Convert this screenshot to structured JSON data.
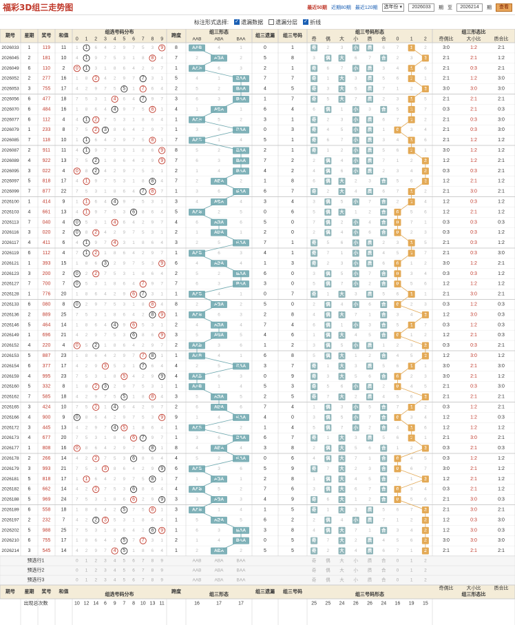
{
  "header": {
    "logo": "福彩3D组三走势图",
    "links": [
      "最近50期",
      "近期80期",
      "最近120期"
    ],
    "active_link": 0,
    "year_select": "选年份",
    "from_value": "2026033",
    "from_label": "期",
    "to_label": "至",
    "to_value": "2026214",
    "to_label2": "期",
    "query_button": "查看"
  },
  "options": {
    "label": "标注形式选择:",
    "checkboxes": [
      {
        "label": "遗漏数据",
        "checked": true
      },
      {
        "label": "遗漏分层",
        "checked": false
      },
      {
        "label": "折线",
        "checked": true
      }
    ]
  },
  "table": {
    "headers": {
      "issue": "期号",
      "week": "星期",
      "prize": "奖号",
      "sum": "和值",
      "dist_group": "组选号码分布",
      "span": "跨度",
      "form_group": "组三形态",
      "miss": "组三遗漏",
      "code": "组三号码",
      "codeform_group": "组三号码形态",
      "ratio_group": "组三形态比"
    },
    "digits": [
      "0",
      "1",
      "2",
      "3",
      "4",
      "5",
      "6",
      "7",
      "8",
      "9"
    ],
    "forms": [
      "AAB",
      "ABA",
      "BAA"
    ],
    "codeforms": [
      "奇",
      "偶",
      "大",
      "小",
      "质",
      "合",
      "0",
      "1",
      "2"
    ],
    "ratios": [
      "奇偶比",
      "大小比",
      "质合比"
    ],
    "rows": [
      [
        "2026033",
        "1",
        "119",
        "11",
        "11",
        "8",
        "1",
        "2",
        "3:0",
        "1:2",
        "2:1"
      ],
      [
        "2026045",
        "2",
        "181",
        "10",
        "10",
        "7",
        "8",
        "1",
        "2:1",
        "2:1",
        "1:2"
      ],
      [
        "2026049",
        "6",
        "110",
        "2",
        "2",
        "1",
        "1",
        "0",
        "2:1",
        "0:3",
        "2:1"
      ],
      [
        "2026052",
        "2",
        "277",
        "16",
        "16",
        "5",
        "7",
        "2",
        "2:1",
        "1:2",
        "3:0"
      ],
      [
        "2026053",
        "3",
        "755",
        "17",
        "17",
        "2",
        "5",
        "2",
        "3:0",
        "3:0",
        "3:0"
      ],
      [
        "2026056",
        "6",
        "477",
        "18",
        "18",
        "3",
        "7",
        "4",
        "2:1",
        "2:1",
        "2:1"
      ],
      [
        "2026070",
        "6",
        "484",
        "16",
        "16",
        "4",
        "4",
        "8",
        "0:3",
        "2:1",
        "0:3"
      ],
      [
        "2026077",
        "6",
        "112",
        "4",
        "4",
        "1",
        "1",
        "2",
        "2:1",
        "0:3",
        "3:0"
      ],
      [
        "2026079",
        "1",
        "233",
        "8",
        "8",
        "1",
        "3",
        "3",
        "2:1",
        "0:3",
        "3:0"
      ],
      [
        "2026085",
        "7",
        "118",
        "10",
        "10",
        "7",
        "1",
        "8",
        "2:1",
        "1:2",
        "1:2"
      ],
      [
        "2026087",
        "2",
        "911",
        "11",
        "11",
        "8",
        "1",
        "9",
        "3:0",
        "1:2",
        "1:2"
      ],
      [
        "2026089",
        "4",
        "922",
        "13",
        "13",
        "7",
        "2",
        "9",
        "1:2",
        "1:2",
        "2:1"
      ],
      [
        "2026095",
        "3",
        "022",
        "4",
        "4",
        "2",
        "2",
        "0",
        "0:3",
        "0:3",
        "2:1"
      ],
      [
        "2026097",
        "5",
        "818",
        "17",
        "17",
        "7",
        "8",
        "1",
        "1:2",
        "2:1",
        "1:2"
      ],
      [
        "2026099",
        "7",
        "877",
        "22",
        "22",
        "1",
        "7",
        "8",
        "2:1",
        "3:0",
        "2:1"
      ],
      [
        "2026100",
        "1",
        "414",
        "9",
        "9",
        "3",
        "4",
        "1",
        "1:2",
        "0:3",
        "1:2"
      ],
      [
        "2026103",
        "4",
        "661",
        "13",
        "13",
        "5",
        "6",
        "1",
        "1:2",
        "2:1",
        "1:2"
      ],
      [
        "2026113",
        "7",
        "040",
        "4",
        "4",
        "4",
        "0",
        "4",
        "0:3",
        "0:3",
        "0:3"
      ],
      [
        "2026116",
        "3",
        "020",
        "2",
        "2",
        "2",
        "0",
        "2",
        "0:3",
        "0:3",
        "1:2"
      ],
      [
        "2026117",
        "4",
        "411",
        "6",
        "6",
        "3",
        "1",
        "4",
        "2:1",
        "0:3",
        "1:2"
      ],
      [
        "2026119",
        "6",
        "112",
        "4",
        "4",
        "1",
        "1",
        "2",
        "2:1",
        "0:3",
        "3:0"
      ],
      [
        "2026121",
        "1",
        "393",
        "15",
        "15",
        "6",
        "3",
        "9",
        "3:0",
        "1:2",
        "2:1"
      ],
      [
        "2026123",
        "3",
        "200",
        "2",
        "2",
        "2",
        "0",
        "2",
        "0:3",
        "0:3",
        "1:2"
      ],
      [
        "2026127",
        "7",
        "700",
        "7",
        "7",
        "7",
        "0",
        "7",
        "1:2",
        "1:2",
        "1:2"
      ],
      [
        "2026128",
        "1",
        "776",
        "20",
        "20",
        "1",
        "7",
        "6",
        "2:1",
        "3:0",
        "2:1"
      ],
      [
        "2026133",
        "6",
        "080",
        "8",
        "8",
        "8",
        "0",
        "8",
        "0:3",
        "1:2",
        "0:3"
      ],
      [
        "2026136",
        "2",
        "889",
        "25",
        "25",
        "1",
        "8",
        "9",
        "1:2",
        "3:0",
        "0:3"
      ],
      [
        "2026146",
        "5",
        "464",
        "14",
        "14",
        "2",
        "4",
        "6",
        "0:3",
        "1:2",
        "0:3"
      ],
      [
        "2026149",
        "1",
        "696",
        "21",
        "21",
        "3",
        "6",
        "9",
        "1:2",
        "2:1",
        "0:3"
      ],
      [
        "2026152",
        "4",
        "220",
        "4",
        "4",
        "2",
        "2",
        "0",
        "0:3",
        "0:3",
        "2:1"
      ],
      [
        "2026153",
        "5",
        "887",
        "23",
        "23",
        "1",
        "8",
        "7",
        "1:2",
        "3:0",
        "1:2"
      ],
      [
        "2026154",
        "6",
        "377",
        "17",
        "17",
        "4",
        "7",
        "3",
        "3:0",
        "2:1",
        "3:0"
      ],
      [
        "2026159",
        "4",
        "995",
        "23",
        "23",
        "4",
        "9",
        "5",
        "3:0",
        "2:1",
        "1:2"
      ],
      [
        "2026160",
        "5",
        "332",
        "8",
        "8",
        "1",
        "3",
        "2",
        "2:1",
        "0:3",
        "3:0"
      ],
      [
        "2026162",
        "7",
        "585",
        "18",
        "18",
        "3",
        "5",
        "8",
        "2:1",
        "2:1",
        "2:1"
      ],
      [
        "2026165",
        "3",
        "424",
        "10",
        "10",
        "2",
        "4",
        "2",
        "0:3",
        "1:2",
        "2:1"
      ],
      [
        "2026166",
        "4",
        "900",
        "9",
        "9",
        "9",
        "0",
        "9",
        "1:2",
        "1:2",
        "0:3"
      ],
      [
        "2026172",
        "3",
        "445",
        "13",
        "13",
        "1",
        "4",
        "5",
        "1:2",
        "1:2",
        "1:2"
      ],
      [
        "2026173",
        "4",
        "677",
        "20",
        "20",
        "1",
        "7",
        "6",
        "2:1",
        "3:0",
        "2:1"
      ],
      [
        "2026177",
        "1",
        "808",
        "16",
        "16",
        "8",
        "8",
        "0",
        "0:3",
        "2:1",
        "0:3"
      ],
      [
        "2026178",
        "2",
        "266",
        "14",
        "14",
        "4",
        "6",
        "2",
        "0:3",
        "1:2",
        "1:2"
      ],
      [
        "2026179",
        "3",
        "993",
        "21",
        "21",
        "6",
        "9",
        "3",
        "3:0",
        "2:1",
        "1:2"
      ],
      [
        "2026181",
        "5",
        "818",
        "17",
        "17",
        "7",
        "8",
        "1",
        "1:2",
        "2:1",
        "1:2"
      ],
      [
        "2026182",
        "6",
        "662",
        "14",
        "14",
        "4",
        "6",
        "2",
        "0:3",
        "2:1",
        "1:2"
      ],
      [
        "2026188",
        "5",
        "969",
        "24",
        "24",
        "3",
        "9",
        "6",
        "2:1",
        "3:0",
        "0:3"
      ],
      [
        "2026189",
        "6",
        "558",
        "18",
        "18",
        "3",
        "5",
        "8",
        "2:1",
        "3:0",
        "2:1"
      ],
      [
        "2026197",
        "2",
        "232",
        "7",
        "7",
        "1",
        "2",
        "3",
        "1:2",
        "0:3",
        "3:0"
      ],
      [
        "2026202",
        "5",
        "988",
        "25",
        "25",
        "1",
        "8",
        "9",
        "1:2",
        "3:0",
        "0:3"
      ],
      [
        "2026210",
        "6",
        "755",
        "17",
        "17",
        "2",
        "5",
        "7",
        "3:0",
        "3:0",
        "3:0"
      ],
      [
        "2026214",
        "3",
        "545",
        "14",
        "14",
        "1",
        "5",
        "4",
        "2:1",
        "2:1",
        "2:1"
      ]
    ],
    "prediction_rows": [
      "预选行1",
      "预选行2",
      "预选行3"
    ],
    "stats_label": "出现总次数",
    "stats": {
      "digits": [
        "10",
        "12",
        "14",
        "6",
        "9",
        "7",
        "8",
        "10",
        "13",
        "11"
      ],
      "forms": [
        "16",
        "17",
        "17"
      ],
      "codeforms": [
        "25",
        "25",
        "24",
        "26",
        "26",
        "24",
        "16",
        "19",
        "15"
      ]
    }
  }
}
